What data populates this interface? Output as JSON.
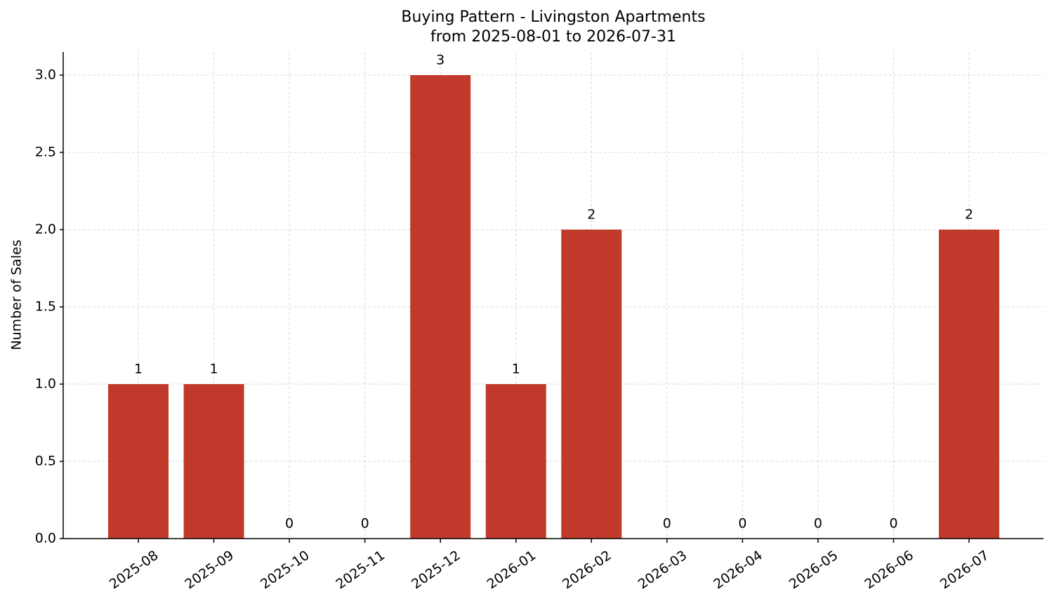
{
  "chart_data": {
    "type": "bar",
    "title": "Buying Pattern - Livingston Apartments",
    "subtitle": "from 2025-08-01 to 2026-07-31",
    "y_label": "Number of Sales",
    "categories": [
      "2025-08",
      "2025-09",
      "2025-10",
      "2025-11",
      "2025-12",
      "2026-01",
      "2026-02",
      "2026-03",
      "2026-04",
      "2026-05",
      "2026-06",
      "2026-07"
    ],
    "values": [
      1,
      1,
      0,
      0,
      3,
      1,
      2,
      0,
      0,
      0,
      0,
      2
    ],
    "color": "#c0392b",
    "ylim": [
      0,
      3.15
    ],
    "yticks": [
      {
        "value": 0,
        "label": "0.0"
      },
      0.5,
      {
        "value": 1,
        "label": "1.0"
      },
      1.5,
      {
        "value": 2,
        "label": "2.0"
      },
      2.5,
      {
        "value": 3,
        "label": "3.0"
      }
    ],
    "grid": true
  }
}
